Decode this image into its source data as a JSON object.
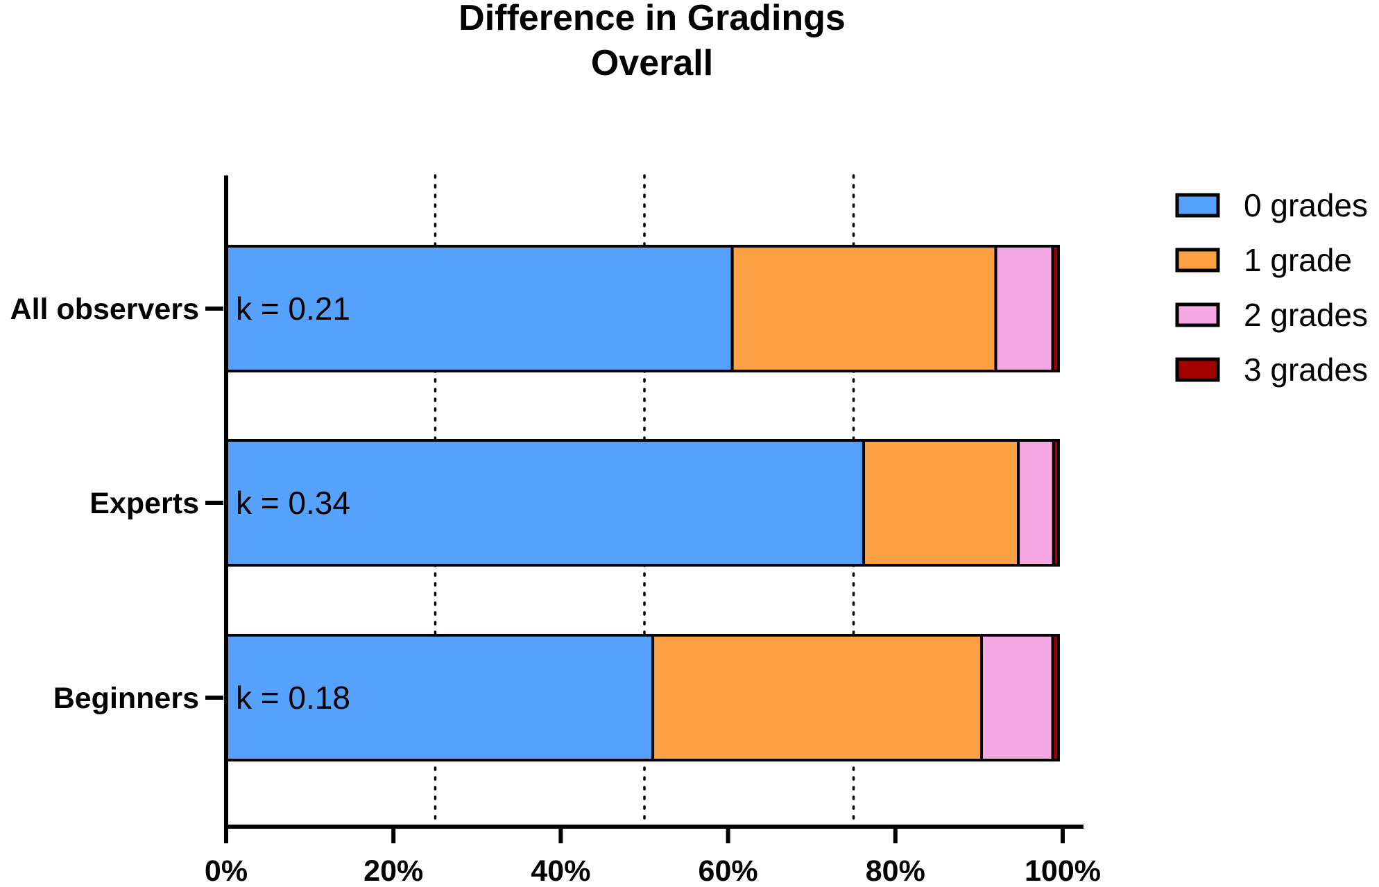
{
  "chart_data": {
    "type": "bar",
    "orientation": "horizontal",
    "stacked": true,
    "title": "Difference in Gradings",
    "subtitle": "Overall",
    "categories": [
      "All observers",
      "Experts",
      "Beginners"
    ],
    "annotations": [
      "k = 0.21",
      "k = 0.34",
      "k = 0.18"
    ],
    "series": [
      {
        "name": "0 grades",
        "values": [
          60.5,
          76.2,
          51.0
        ]
      },
      {
        "name": "1 grade",
        "values": [
          31.5,
          18.5,
          39.3
        ]
      },
      {
        "name": "2 grades",
        "values": [
          6.8,
          4.2,
          8.5
        ]
      },
      {
        "name": "3 grades",
        "values": [
          0.7,
          0.6,
          0.7
        ]
      }
    ],
    "xlim": [
      0,
      100
    ],
    "xticks": [
      "0%",
      "20%",
      "40%",
      "60%",
      "80%",
      "100%"
    ],
    "xtick_values": [
      0,
      20,
      40,
      60,
      80,
      100
    ],
    "gridlines_at": [
      25,
      50,
      75
    ],
    "grid": "vertical dotted",
    "legend_position": "right",
    "colors": [
      "#55a1fb",
      "#fba144",
      "#f6a8e4",
      "#a40000"
    ]
  }
}
